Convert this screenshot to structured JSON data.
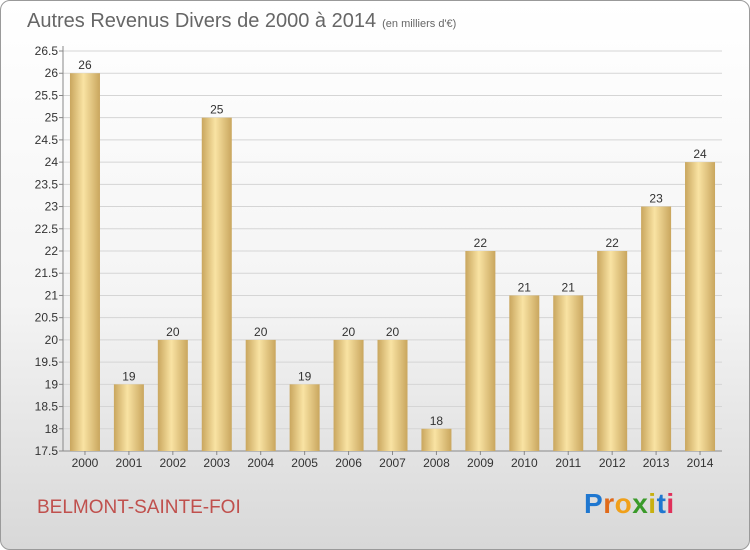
{
  "header": {
    "title": "Autres Revenus Divers de 2000 à 2014",
    "subtitle": "(en milliers d'€)"
  },
  "footer": {
    "city": "BELMONT-SAINTE-FOI",
    "logo": "Proxiti"
  },
  "colors": {
    "bar_light": "#f9e3a3",
    "bar_dark": "#c9a65e",
    "grid": "#d5d5d5",
    "city": "#c0504d"
  },
  "chart_data": {
    "type": "bar",
    "categories": [
      "2000",
      "2001",
      "2002",
      "2003",
      "2004",
      "2005",
      "2006",
      "2007",
      "2008",
      "2009",
      "2010",
      "2011",
      "2012",
      "2013",
      "2014"
    ],
    "values": [
      26,
      19,
      20,
      25,
      20,
      19,
      20,
      20,
      18,
      22,
      21,
      21,
      22,
      23,
      24
    ],
    "ylim": [
      17.5,
      26.5
    ],
    "yticks": [
      "17.5",
      "18",
      "18.5",
      "19",
      "19.5",
      "20",
      "20.5",
      "21",
      "21.5",
      "22",
      "22.5",
      "23",
      "23.5",
      "24",
      "24.5",
      "25",
      "25.5",
      "26",
      "26.5"
    ],
    "grid": true
  }
}
